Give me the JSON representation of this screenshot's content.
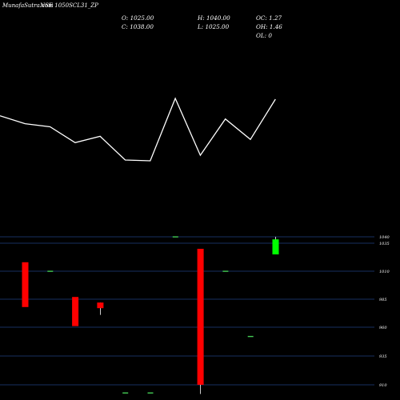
{
  "header": {
    "overlap_text": "MunafaSutra.com",
    "symbol_text": "NSE 1050SCL31_ZP"
  },
  "ohlc": {
    "open": "O: 1025.00",
    "high": "H: 1040.00",
    "oc": "OC: 1.27",
    "close": "C: 1038.00",
    "low": "L: 1025.00",
    "oh": "OH: 1.46",
    "ol": "OL: 0"
  },
  "colors": {
    "background": "#000000",
    "up": "#00ff00",
    "down": "#ff0000",
    "line": "#ffffff",
    "grid": "#1f3f7f",
    "dash": "#44cc55"
  },
  "chart_data": [
    {
      "type": "line",
      "x": [
        0,
        1,
        2,
        3,
        4,
        5,
        6,
        7,
        8,
        9,
        10,
        11
      ],
      "y": [
        1040,
        1030,
        1026,
        1006,
        1014,
        984,
        983,
        1062,
        990,
        1036,
        1010,
        1061
      ]
    },
    {
      "type": "candlestick",
      "y_ticks": [
        1040,
        1035,
        1010,
        985,
        960,
        935,
        910
      ],
      "ylim": [
        902,
        1041
      ],
      "candles": [
        {
          "i": 0,
          "open": 1018,
          "close": 978,
          "high": 1018,
          "low": 978
        },
        {
          "i": 1,
          "open": 1010,
          "close": 1010,
          "high": 1010,
          "low": 1010
        },
        {
          "i": 2,
          "open": 987,
          "close": 961,
          "high": 987,
          "low": 961
        },
        {
          "i": 3,
          "open": 982,
          "close": 977,
          "high": 982,
          "low": 971
        },
        {
          "i": 4,
          "open": 903,
          "close": 903,
          "high": 903,
          "low": 903
        },
        {
          "i": 5,
          "open": 903,
          "close": 903,
          "high": 903,
          "low": 903
        },
        {
          "i": 6,
          "open": 1040,
          "close": 1040,
          "high": 1040,
          "low": 1040
        },
        {
          "i": 7,
          "open": 1030,
          "close": 910,
          "high": 1030,
          "low": 902
        },
        {
          "i": 8,
          "open": 1010,
          "close": 1010,
          "high": 1010,
          "low": 1010
        },
        {
          "i": 9,
          "open": 952,
          "close": 952,
          "high": 952,
          "low": 952
        },
        {
          "i": 10,
          "open": 1025,
          "close": 1038,
          "high": 1040,
          "low": 1025
        }
      ]
    }
  ]
}
